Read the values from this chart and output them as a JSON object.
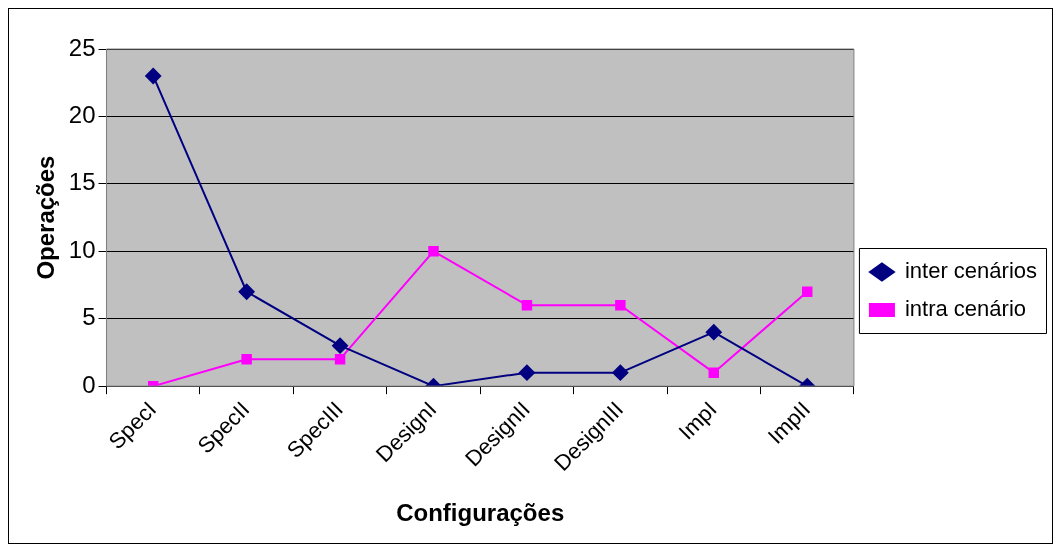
{
  "chart_data": {
    "type": "line",
    "xlabel": "Configurações",
    "ylabel": "Operações",
    "categories": [
      "SpecI",
      "SpecII",
      "SpecIII",
      "DesignI",
      "DesignII",
      "DesignIII",
      "ImpI",
      "ImpII"
    ],
    "series": [
      {
        "name": "inter cenários",
        "color": "#000080",
        "marker": "diamond",
        "values": [
          23,
          7,
          3,
          0,
          1,
          1,
          4,
          0
        ]
      },
      {
        "name": "intra cenário",
        "color": "#ff00ff",
        "marker": "square",
        "values": [
          0,
          2,
          2,
          10,
          6,
          6,
          1,
          7
        ]
      }
    ],
    "ylim": [
      0,
      25
    ],
    "yticks": [
      0,
      5,
      10,
      15,
      20,
      25
    ],
    "grid": "y",
    "legend": "right",
    "line_style": "solid"
  }
}
